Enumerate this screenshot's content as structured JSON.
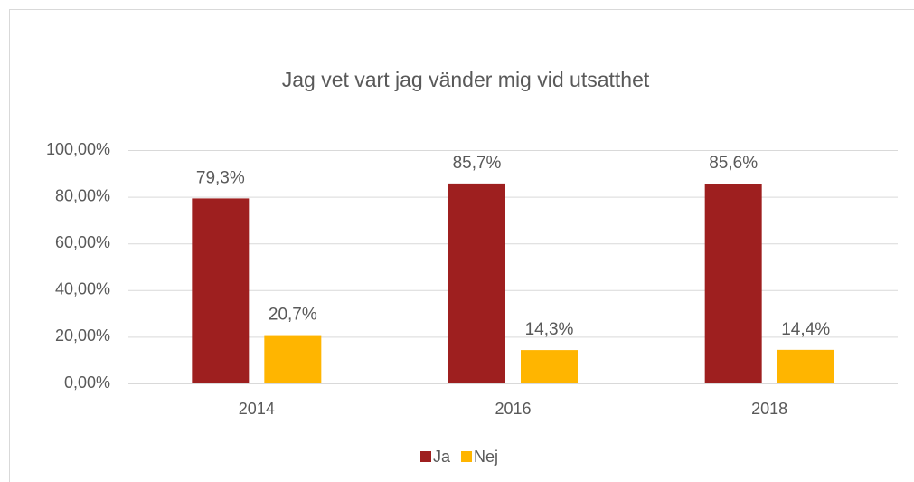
{
  "chart_data": {
    "type": "bar",
    "title": "Jag vet vart jag vänder mig vid utsatthet",
    "categories": [
      "2014",
      "2016",
      "2018"
    ],
    "series": [
      {
        "name": "Ja",
        "color": "#9e1f1f",
        "values": [
          79.3,
          85.7,
          85.6
        ],
        "value_labels": [
          "79,3%",
          "85,7%",
          "85,6%"
        ]
      },
      {
        "name": "Nej",
        "color": "#ffb500",
        "values": [
          20.7,
          14.3,
          14.4
        ],
        "value_labels": [
          "20,7%",
          "14,3%",
          "14,4%"
        ]
      }
    ],
    "ylim": [
      0,
      100
    ],
    "yticks": [
      {
        "value": 0,
        "label": "0,00%"
      },
      {
        "value": 20,
        "label": "20,00%"
      },
      {
        "value": 40,
        "label": "40,00%"
      },
      {
        "value": 60,
        "label": "60,00%"
      },
      {
        "value": 80,
        "label": "80,00%"
      },
      {
        "value": 100,
        "label": "100,00%"
      }
    ],
    "grid": true,
    "legend": "bottom"
  }
}
